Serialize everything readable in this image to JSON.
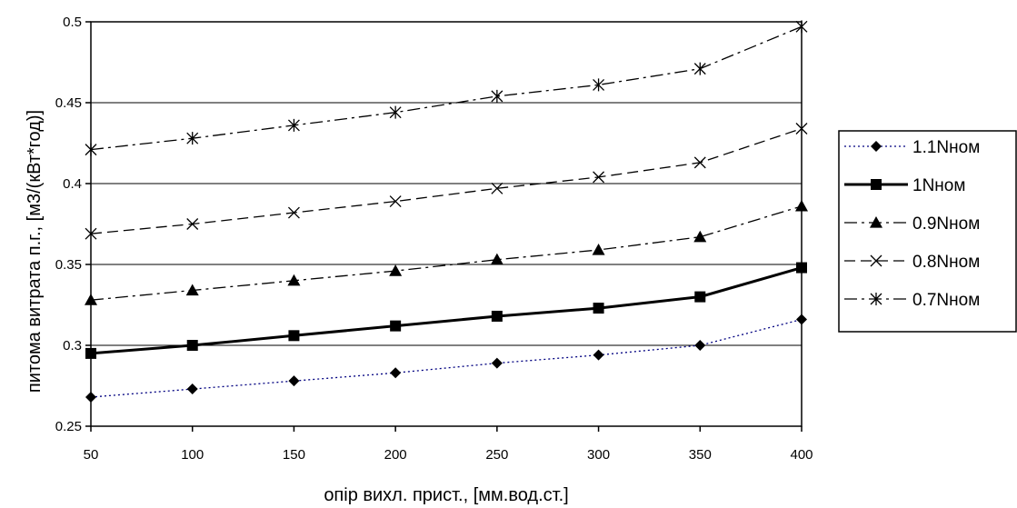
{
  "chart_data": {
    "type": "line",
    "title": "",
    "xlabel": "опір вихл. прист., [мм.вод.ст.]",
    "ylabel": "питома витрата п.г.,  [м3/(кВт*год)]",
    "x": [
      50,
      100,
      150,
      200,
      250,
      300,
      350,
      400
    ],
    "xticks": [
      "50",
      "100",
      "150",
      "200",
      "250",
      "300",
      "350",
      "400"
    ],
    "yticks": [
      "0.25",
      "0.3",
      "0.35",
      "0.4",
      "0.45",
      "0.5"
    ],
    "xlim": [
      50,
      400
    ],
    "ylim": [
      0.25,
      0.5
    ],
    "grid": "horizontal",
    "legend_position": "right",
    "series": [
      {
        "name": "1.1Nном",
        "values": [
          0.268,
          0.273,
          0.278,
          0.283,
          0.289,
          0.294,
          0.3,
          0.316
        ],
        "marker": "diamond",
        "line": "dotted",
        "color": "#000080"
      },
      {
        "name": "1Nном",
        "values": [
          0.295,
          0.3,
          0.306,
          0.312,
          0.318,
          0.323,
          0.33,
          0.348
        ],
        "marker": "square",
        "line": "solid",
        "color": "#000000"
      },
      {
        "name": "0.9Nном",
        "values": [
          0.328,
          0.334,
          0.34,
          0.346,
          0.353,
          0.359,
          0.367,
          0.386
        ],
        "marker": "triangle",
        "line": "dashdot",
        "color": "#000000"
      },
      {
        "name": "0.8Nном",
        "values": [
          0.369,
          0.375,
          0.382,
          0.389,
          0.397,
          0.404,
          0.413,
          0.434
        ],
        "marker": "x",
        "line": "dashed",
        "color": "#000000"
      },
      {
        "name": "0.7Nном",
        "values": [
          0.421,
          0.428,
          0.436,
          0.444,
          0.454,
          0.461,
          0.471,
          0.497
        ],
        "marker": "star",
        "line": "dashdot",
        "color": "#000000"
      }
    ]
  }
}
